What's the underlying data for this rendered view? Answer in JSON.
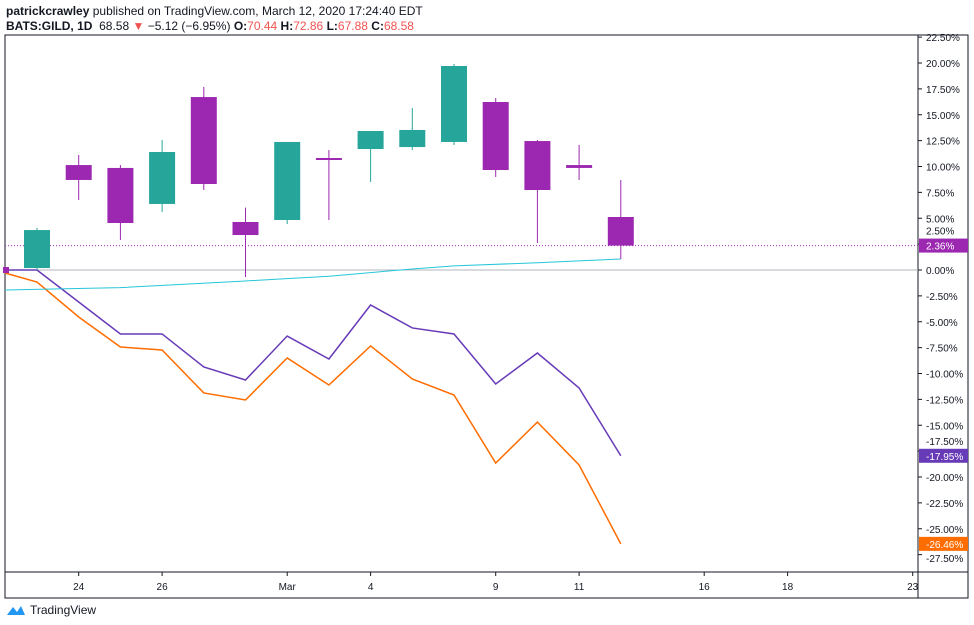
{
  "header": {
    "author": "patrickcrawley",
    "published": "published on TradingView.com, March 12, 2020 17:24:40 EDT",
    "symbol": "BATS:GILD, 1D",
    "last": "68.58",
    "change": "−5.12 (−6.95%)",
    "o_label": "O:",
    "o": "70.44",
    "h_label": "H:",
    "h": "72.86",
    "l_label": "L:",
    "l": "67.88",
    "c_label": "C:",
    "c": "68.58"
  },
  "logo": {
    "text": "TradingView"
  },
  "colors": {
    "up": "#26a69a",
    "down": "#9c27b0",
    "line1": "#673ab7",
    "line2": "#ff6d00",
    "ma": "#26c6da"
  },
  "chart_data": {
    "type": "candlestick",
    "y_unit": "%",
    "ylim": [
      -28.5,
      23
    ],
    "y_ticks": [
      "22.50%",
      "20.00%",
      "17.50%",
      "15.00%",
      "12.50%",
      "10.00%",
      "7.50%",
      "5.00%",
      "2.50%",
      "0.00%",
      "-2.50%",
      "-5.00%",
      "-7.50%",
      "-10.00%",
      "-12.50%",
      "-15.00%",
      "-17.50%",
      "-20.00%",
      "-22.50%",
      "-25.00%",
      "-27.50%"
    ],
    "y_tick_values": [
      22.5,
      20,
      17.5,
      15,
      12.5,
      10,
      7.5,
      5,
      2.5,
      0,
      -2.5,
      -5,
      -7.5,
      -10,
      -12.5,
      -15,
      -17.5,
      -20,
      -22.5,
      -25,
      -27.5
    ],
    "x_ticks": [
      {
        "label": "24",
        "i": 1
      },
      {
        "label": "26",
        "i": 3
      },
      {
        "label": "Mar",
        "i": 6
      },
      {
        "label": "4",
        "i": 8
      },
      {
        "label": "9",
        "i": 11
      },
      {
        "label": "11",
        "i": 13
      },
      {
        "label": "16",
        "i": 16
      },
      {
        "label": "18",
        "i": 18
      },
      {
        "label": "23",
        "i": 21
      }
    ],
    "candles": [
      {
        "date": "Feb 21",
        "o": 0.19,
        "h": 4.06,
        "l": 0,
        "c": 3.86
      },
      {
        "date": "Feb 24",
        "o": 10.14,
        "h": 11.11,
        "l": 6.76,
        "c": 8.7
      },
      {
        "date": "Feb 25",
        "o": 9.86,
        "h": 10.14,
        "l": 2.9,
        "c": 4.54
      },
      {
        "date": "Feb 26",
        "o": 6.38,
        "h": 12.56,
        "l": 5.6,
        "c": 11.4
      },
      {
        "date": "Feb 27",
        "o": 16.71,
        "h": 17.68,
        "l": 7.73,
        "c": 8.31
      },
      {
        "date": "Feb 28",
        "o": 4.64,
        "h": 6.03,
        "l": -0.68,
        "c": 3.38
      },
      {
        "date": "Mar 2",
        "o": 4.83,
        "h": 12.37,
        "l": 4.44,
        "c": 12.37
      },
      {
        "date": "Mar 3",
        "o": 10.82,
        "h": 11.59,
        "l": 4.83,
        "c": 10.63
      },
      {
        "date": "Mar 4",
        "o": 11.69,
        "h": 13.43,
        "l": 8.5,
        "c": 13.43
      },
      {
        "date": "Mar 5",
        "o": 11.88,
        "h": 15.65,
        "l": 11.59,
        "c": 13.53
      },
      {
        "date": "Mar 6",
        "o": 12.37,
        "h": 19.9,
        "l": 12.08,
        "c": 19.71
      },
      {
        "date": "Mar 9",
        "o": 16.23,
        "h": 16.62,
        "l": 8.99,
        "c": 9.66
      },
      {
        "date": "Mar 10",
        "o": 12.46,
        "h": 12.56,
        "l": 2.61,
        "c": 7.73
      },
      {
        "date": "Mar 11",
        "o": 10.14,
        "h": 12.08,
        "l": 8.7,
        "c": 9.86
      },
      {
        "date": "Mar 12",
        "o": 5.12,
        "h": 8.7,
        "l": 1.06,
        "c": 2.36
      }
    ],
    "series": [
      {
        "name": "compare-purple",
        "color": "#673ab7",
        "x": [
          -1,
          0,
          1,
          2,
          3,
          4,
          5,
          6,
          7,
          8,
          9,
          10,
          11,
          12,
          13,
          14
        ],
        "values": [
          0,
          0,
          -3.09,
          -6.18,
          -6.18,
          -9.37,
          -10.63,
          -6.38,
          -8.6,
          -3.38,
          -5.6,
          -6.18,
          -11.01,
          -8.02,
          -11.4,
          -17.95
        ],
        "last_label": "-17.95%"
      },
      {
        "name": "compare-orange",
        "color": "#ff6d00",
        "x": [
          -1,
          0,
          1,
          2,
          3,
          4,
          5,
          6,
          7,
          8,
          9,
          10,
          11,
          12,
          13,
          14
        ],
        "values": [
          -0.29,
          -1.16,
          -4.54,
          -7.44,
          -7.73,
          -11.88,
          -12.56,
          -8.5,
          -11.11,
          -7.34,
          -10.53,
          -12.08,
          -18.65,
          -14.69,
          -18.84,
          -26.46
        ],
        "last_label": "-26.46%"
      },
      {
        "name": "moving-average",
        "color": "#26c6da",
        "x": [
          -1,
          2,
          5,
          7,
          9,
          10,
          12,
          14
        ],
        "values": [
          -1.93,
          -1.7,
          -1.06,
          -0.6,
          0.1,
          0.4,
          0.7,
          1.06
        ]
      }
    ],
    "last_price_label": "2.36%",
    "last_price_value": 2.36
  }
}
